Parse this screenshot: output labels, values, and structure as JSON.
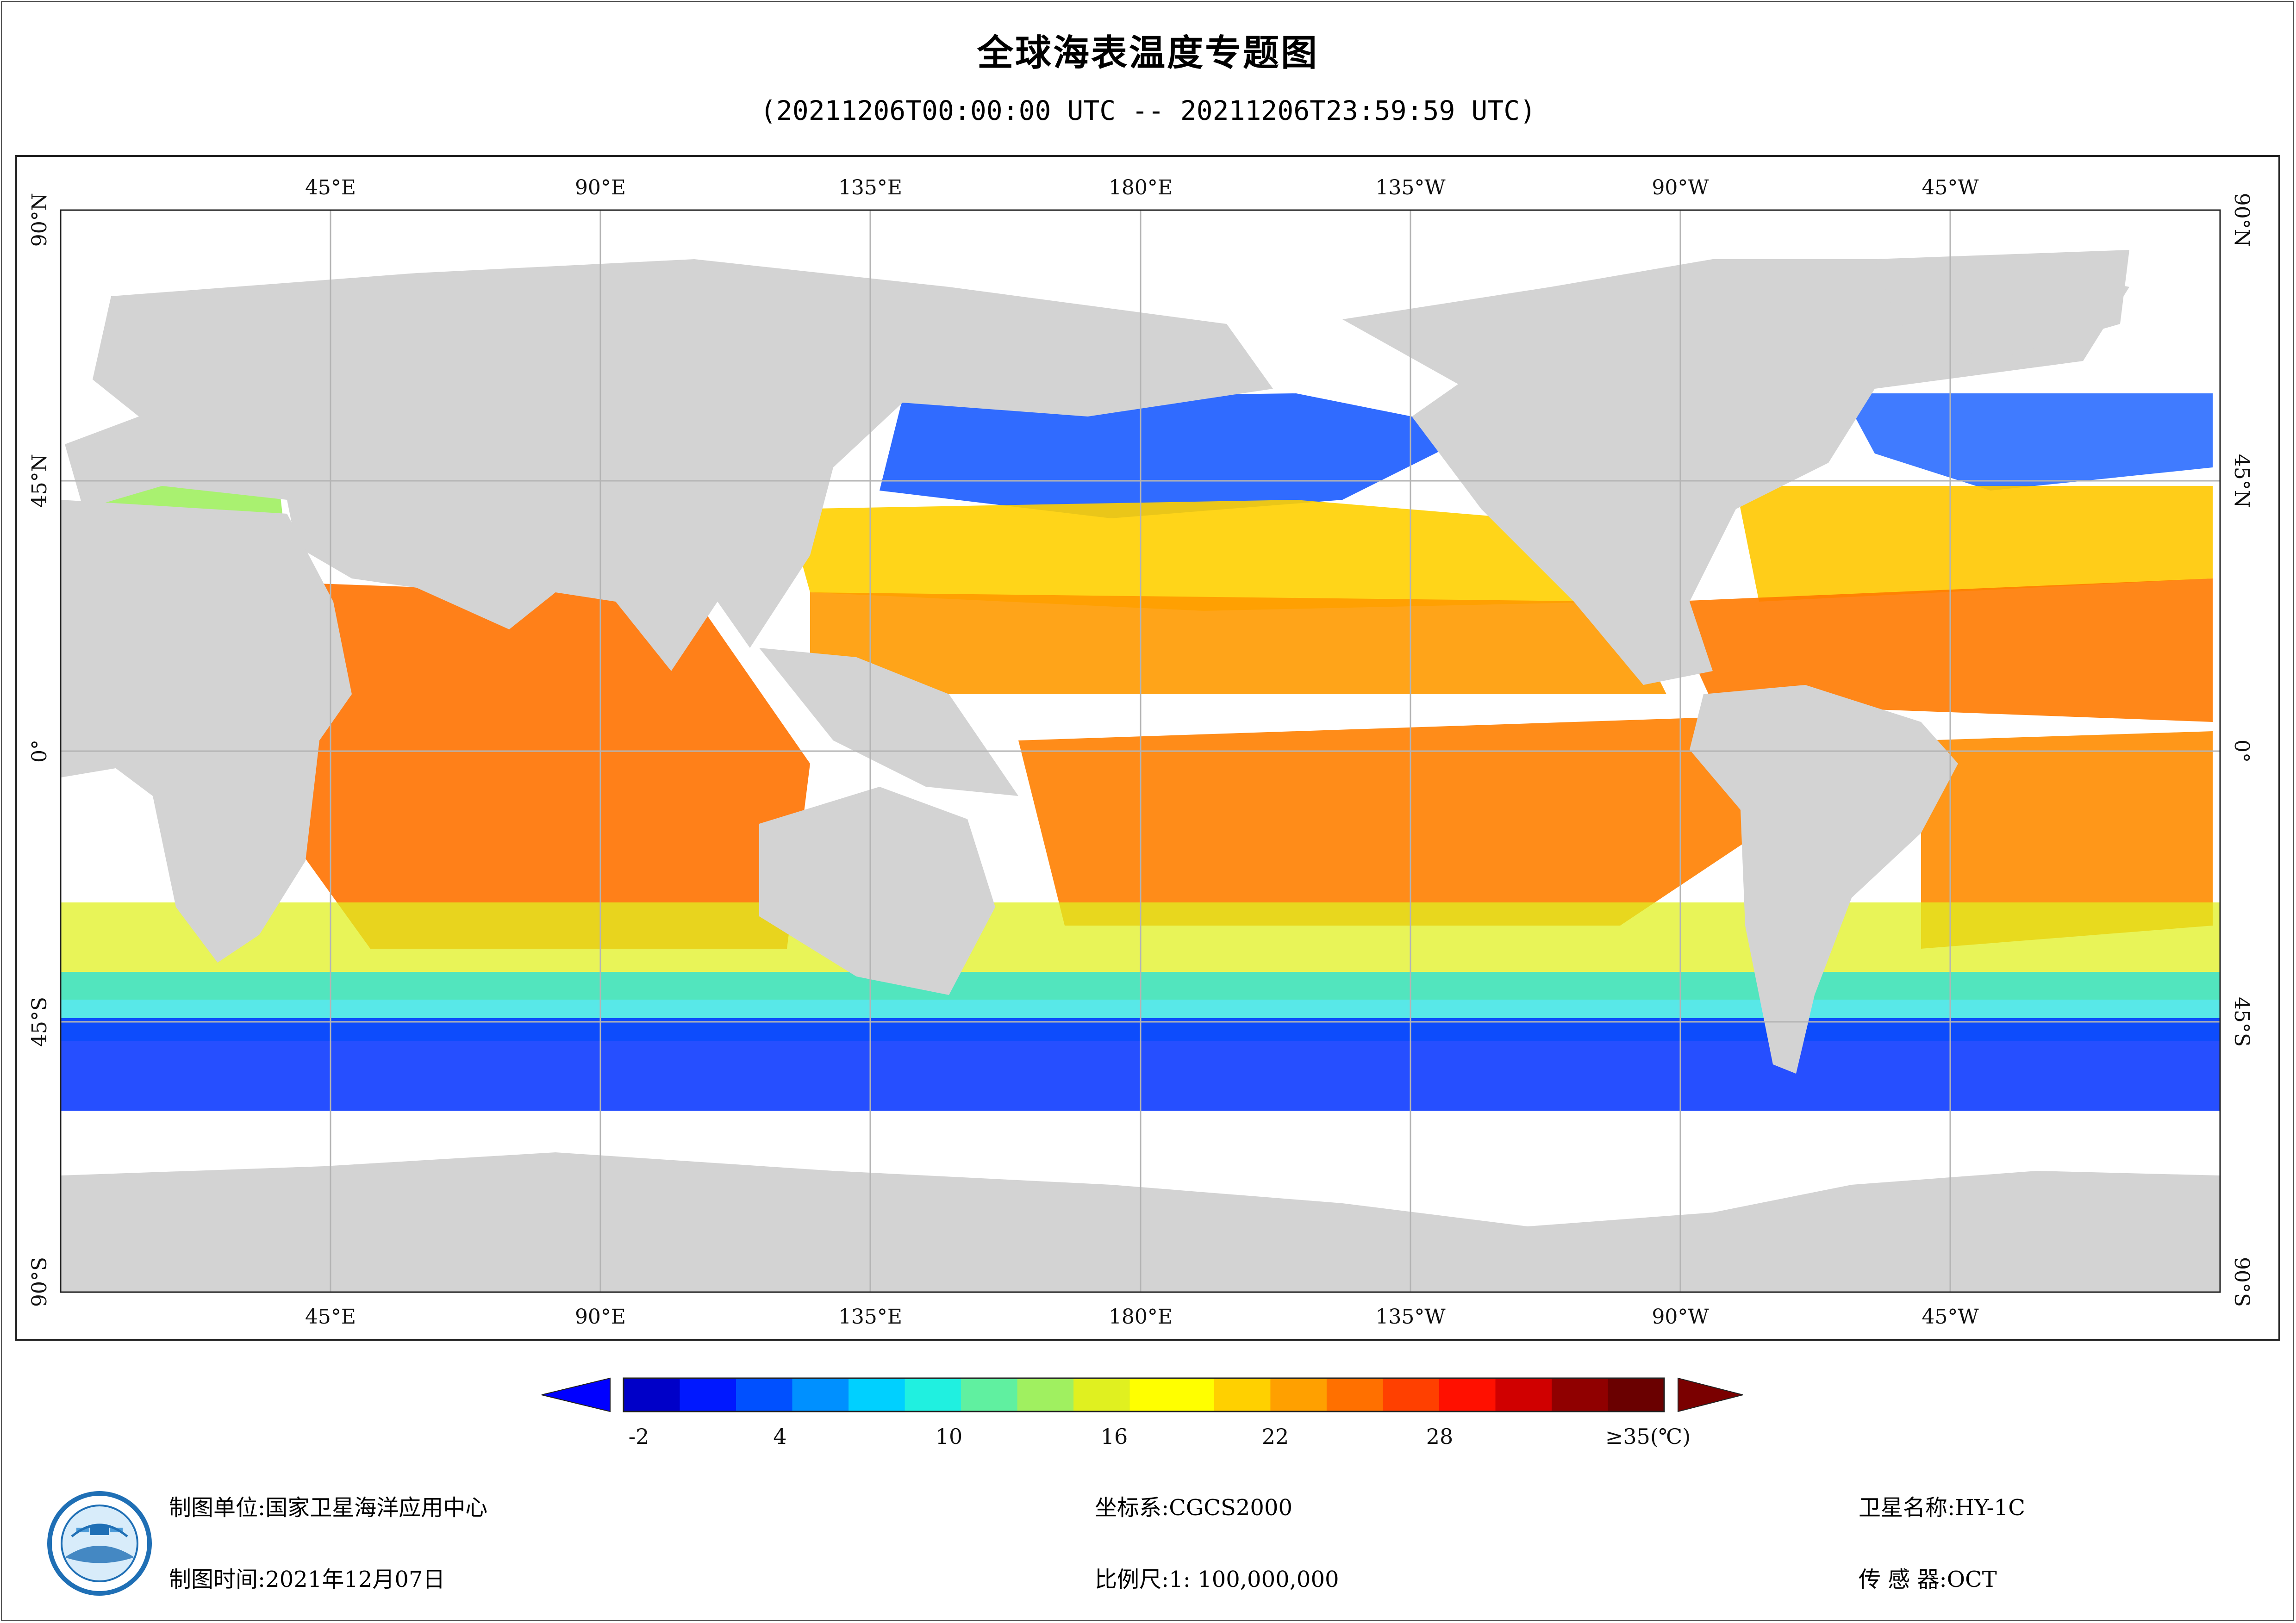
{
  "title": "全球海表温度专题图",
  "subtitle": "(20211206T00:00:00 UTC -- 20211206T23:59:59 UTC)",
  "axes": {
    "lon_top": [
      "45°E",
      "90°E",
      "135°E",
      "180°E",
      "135°W",
      "90°W",
      "45°W"
    ],
    "lon_bottom": [
      "45°E",
      "90°E",
      "135°E",
      "180°E",
      "135°W",
      "90°W",
      "45°W"
    ],
    "lat_left": [
      "90°N",
      "45°N",
      "0°",
      "45°S",
      "90°S"
    ],
    "lat_right": [
      "90°N",
      "45°N",
      "0°",
      "45°S",
      "90°S"
    ]
  },
  "colorbar": {
    "tick_labels": [
      "-2",
      "4",
      "10",
      "16",
      "22",
      "28",
      "≥35(℃)"
    ],
    "range": [
      -2,
      35
    ],
    "unit": "℃",
    "colors": [
      "#0000c8",
      "#0018ff",
      "#0050ff",
      "#0090ff",
      "#00d0ff",
      "#20f0e0",
      "#60f0a0",
      "#a0f060",
      "#e0f020",
      "#ffff00",
      "#ffd000",
      "#ffa000",
      "#ff7000",
      "#ff4000",
      "#ff1000",
      "#d00000",
      "#900000",
      "#6a0000"
    ],
    "under_color": "#0000ff",
    "over_color": "#7a0000"
  },
  "footer": {
    "unit_label": "制图单位:",
    "unit_value": "国家卫星海洋应用中心",
    "time_label": "制图时间:",
    "time_value": "2021年12月07日",
    "crs_label": "坐标系:",
    "crs_value": "CGCS2000",
    "scale_label": "比例尺:",
    "scale_value": "1: 100,000,000",
    "satellite_label": "卫星名称:",
    "satellite_value": "HY-1C",
    "sensor_label": "传 感 器:",
    "sensor_value": "OCT"
  },
  "map_colors": {
    "land": "#d3d3d3",
    "no_data": "#ffffff",
    "grid": "#b4b4b4"
  }
}
